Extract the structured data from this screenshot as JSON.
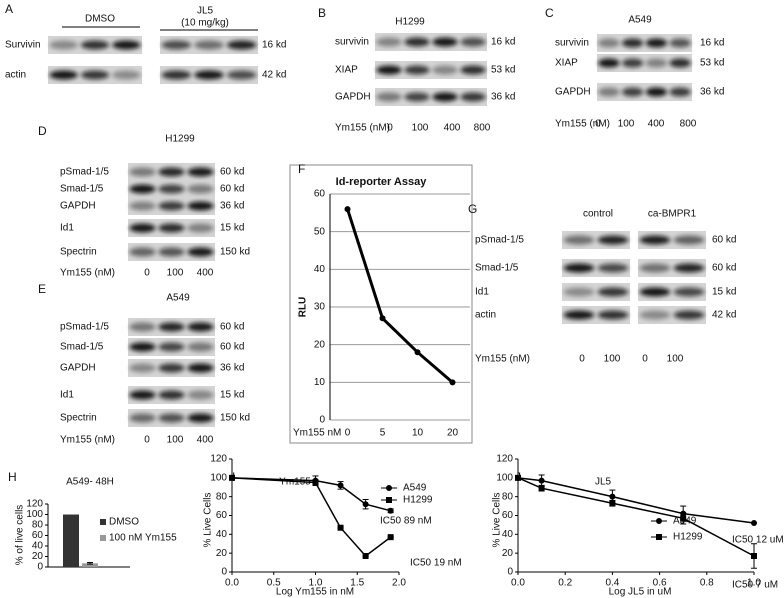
{
  "blots": [
    {
      "label": "A",
      "headers": [
        "DMSO",
        "JL5",
        "(10 mg/kg)"
      ],
      "rows": [
        {
          "name": "Survivin",
          "kd": "16 kd"
        },
        {
          "name": "actin",
          "kd": "42 kd"
        }
      ]
    },
    {
      "label": "B",
      "headers": [
        "H1299"
      ],
      "rows": [
        {
          "name": "survivin",
          "kd": "16 kd"
        },
        {
          "name": "XIAP",
          "kd": "53 kd"
        },
        {
          "name": "GAPDH",
          "kd": "36 kd"
        }
      ],
      "xlabel": "Ym155 (nM)",
      "doses": [
        0,
        100,
        400,
        800
      ]
    },
    {
      "label": "C",
      "headers": [
        "A549"
      ],
      "rows": [
        {
          "name": "survivin",
          "kd": "16 kd"
        },
        {
          "name": "XIAP",
          "kd": "53 kd"
        },
        {
          "name": "GAPDH",
          "kd": "36 kd"
        }
      ],
      "xlabel": "Ym155 (nM)",
      "doses": [
        0,
        100,
        400,
        800
      ]
    },
    {
      "label": "D",
      "headers": [
        "H1299"
      ],
      "rows": [
        {
          "name": "pSmad-1/5",
          "kd": "60 kd"
        },
        {
          "name": "Smad-1/5",
          "kd": "60 kd"
        },
        {
          "name": "GAPDH",
          "kd": "36 kd"
        },
        {
          "name": "Id1",
          "kd": "15 kd"
        },
        {
          "name": "Spectrin",
          "kd": "150 kd"
        }
      ],
      "xlabel": "Ym155 (nM)",
      "doses": [
        0,
        100,
        400
      ]
    },
    {
      "label": "E",
      "headers": [
        "A549"
      ],
      "rows": [
        {
          "name": "pSmad-1/5",
          "kd": "60 kd"
        },
        {
          "name": "Smad-1/5",
          "kd": "60 kd"
        },
        {
          "name": "GAPDH",
          "kd": "36 kd"
        },
        {
          "name": "Id1",
          "kd": "15 kd"
        },
        {
          "name": "Spectrin",
          "kd": "150 kd"
        }
      ],
      "xlabel": "Ym155 (nM)",
      "doses": [
        0,
        100,
        400
      ]
    },
    {
      "label": "G",
      "headers": [
        "control",
        "ca-BMPR1"
      ],
      "rows": [
        {
          "name": "pSmad-1/5",
          "kd": "60 kd"
        },
        {
          "name": "Smad-1/5",
          "kd": "60 kd"
        },
        {
          "name": "Id1",
          "kd": "15 kd"
        },
        {
          "name": "actin",
          "kd": "42 kd"
        }
      ],
      "xlabel": "Ym155 (nM)",
      "doses": [
        0,
        100,
        0,
        100
      ]
    }
  ],
  "chart_data": [
    {
      "panel": "F",
      "type": "line",
      "title": "Id-reporter Assay",
      "ylabel": "RLU",
      "xlabel": "Ym155 nM",
      "categories": [
        "0",
        "5",
        "10",
        "20"
      ],
      "values": [
        56,
        27,
        18,
        10
      ],
      "color": "#000000",
      "ylim": [
        0,
        60
      ],
      "yticks": [
        0,
        10,
        20,
        30,
        40,
        50,
        60
      ],
      "grid": true
    },
    {
      "panel": "H",
      "type": "bar",
      "title": "A549- 48H",
      "ylabel": "% of live cells",
      "categories": [
        null
      ],
      "series": [
        {
          "name": "DMSO",
          "color": "#333333",
          "values": [
            100
          ],
          "errors": [
            0
          ]
        },
        {
          "name": "100 nM Ym155",
          "color": "#999999",
          "values": [
            7
          ],
          "errors": [
            1.5
          ]
        }
      ],
      "ylim": [
        0,
        120
      ],
      "yticks": [
        0,
        20,
        40,
        60,
        80,
        100,
        120
      ]
    },
    {
      "panel": "I",
      "type": "line",
      "title": "Ym155",
      "xlabel": "Log Ym155 in nM",
      "ylabel": "% Live Cells",
      "x": [
        0,
        1,
        1.3,
        1.6,
        1.9
      ],
      "series": [
        {
          "name": "A549",
          "color": "#000000",
          "marker": "circle",
          "values": [
            100,
            97,
            92,
            72,
            65
          ],
          "errors": [
            0,
            5,
            4,
            5,
            2
          ]
        },
        {
          "name": "H1299",
          "color": "#000000",
          "marker": "square",
          "values": [
            100,
            95,
            47,
            17,
            37
          ],
          "errors": [
            0,
            3,
            0,
            0,
            0
          ]
        }
      ],
      "xlim": [
        0,
        2
      ],
      "xticks": [
        {
          "value": 0,
          "label": "0.0"
        },
        {
          "value": 0.5,
          "label": "0.5"
        },
        {
          "value": 1,
          "label": "1.0"
        },
        {
          "value": 1.5,
          "label": "1.5"
        },
        {
          "value": 2,
          "label": "2.0"
        }
      ],
      "ylim": [
        0,
        120
      ],
      "yticks": [
        0,
        20,
        40,
        60,
        80,
        100,
        120
      ],
      "annotations": [
        "IC50 89 nM",
        "IC50 19 nM"
      ]
    },
    {
      "panel": "J",
      "type": "line",
      "title": "JL5",
      "xlabel": "Log JL5 in uM",
      "ylabel": "% Live Cells",
      "x": [
        0,
        0.1,
        0.4,
        0.7,
        1.0
      ],
      "series": [
        {
          "name": "A549",
          "color": "#000000",
          "marker": "circle",
          "values": [
            100,
            97,
            80,
            62,
            52
          ],
          "errors": [
            0,
            6,
            7,
            8,
            0
          ]
        },
        {
          "name": "H1299",
          "color": "#000000",
          "marker": "square",
          "values": [
            100,
            89,
            73,
            57,
            17
          ],
          "errors": [
            0,
            3,
            3,
            6,
            13
          ]
        }
      ],
      "xlim": [
        0,
        1
      ],
      "xticks": [
        {
          "value": 0,
          "label": "0.0"
        },
        {
          "value": 0.2,
          "label": "0.2"
        },
        {
          "value": 0.4,
          "label": "0.4"
        },
        {
          "value": 0.6,
          "label": "0.6"
        },
        {
          "value": 0.8,
          "label": "0.8"
        },
        {
          "value": 1,
          "label": "1.0"
        }
      ],
      "ylim": [
        0,
        120
      ],
      "yticks": [
        0,
        20,
        40,
        60,
        80,
        100,
        120
      ],
      "annotations": [
        "IC50 12 uM",
        "IC50 7 uM"
      ]
    }
  ]
}
